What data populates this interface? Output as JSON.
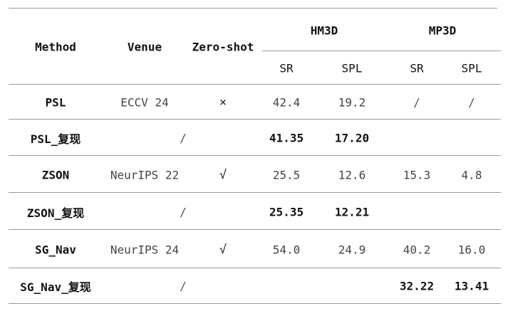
{
  "table": {
    "headers": {
      "method": "Method",
      "venue": "Venue",
      "zero_shot": "Zero-shot",
      "hm3d": "HM3D",
      "mp3d": "MP3D",
      "hm3d_sr": "SR",
      "hm3d_spl": "SPL",
      "mp3d_sr": "SR",
      "mp3d_spl": "SPL"
    },
    "rows": [
      {
        "method": "PSL",
        "venue": "ECCV 24",
        "zero_shot": "×",
        "hm3d_sr": "42.4",
        "hm3d_spl": "19.2",
        "mp3d_sr": "/",
        "mp3d_spl": "/"
      },
      {
        "method": "PSL_复现",
        "venue": "/",
        "zero_shot": "",
        "hm3d_sr": "41.35",
        "hm3d_spl": "17.20",
        "mp3d_sr": "",
        "mp3d_spl": ""
      },
      {
        "method": "ZSON",
        "venue": "NeurIPS 22",
        "zero_shot": "√",
        "hm3d_sr": "25.5",
        "hm3d_spl": "12.6",
        "mp3d_sr": "15.3",
        "mp3d_spl": "4.8"
      },
      {
        "method": "ZSON_复现",
        "venue": "/",
        "zero_shot": "",
        "hm3d_sr": "25.35",
        "hm3d_spl": "12.21",
        "mp3d_sr": "",
        "mp3d_spl": ""
      },
      {
        "method": "SG_Nav",
        "venue": "NeurIPS 24",
        "zero_shot": "√",
        "hm3d_sr": "54.0",
        "hm3d_spl": "24.9",
        "mp3d_sr": "40.2",
        "mp3d_spl": "16.0"
      },
      {
        "method": "SG_Nav_复现",
        "venue": "/",
        "zero_shot": "",
        "hm3d_sr": "",
        "hm3d_spl": "",
        "mp3d_sr": "32.22",
        "mp3d_spl": "13.41"
      }
    ]
  }
}
